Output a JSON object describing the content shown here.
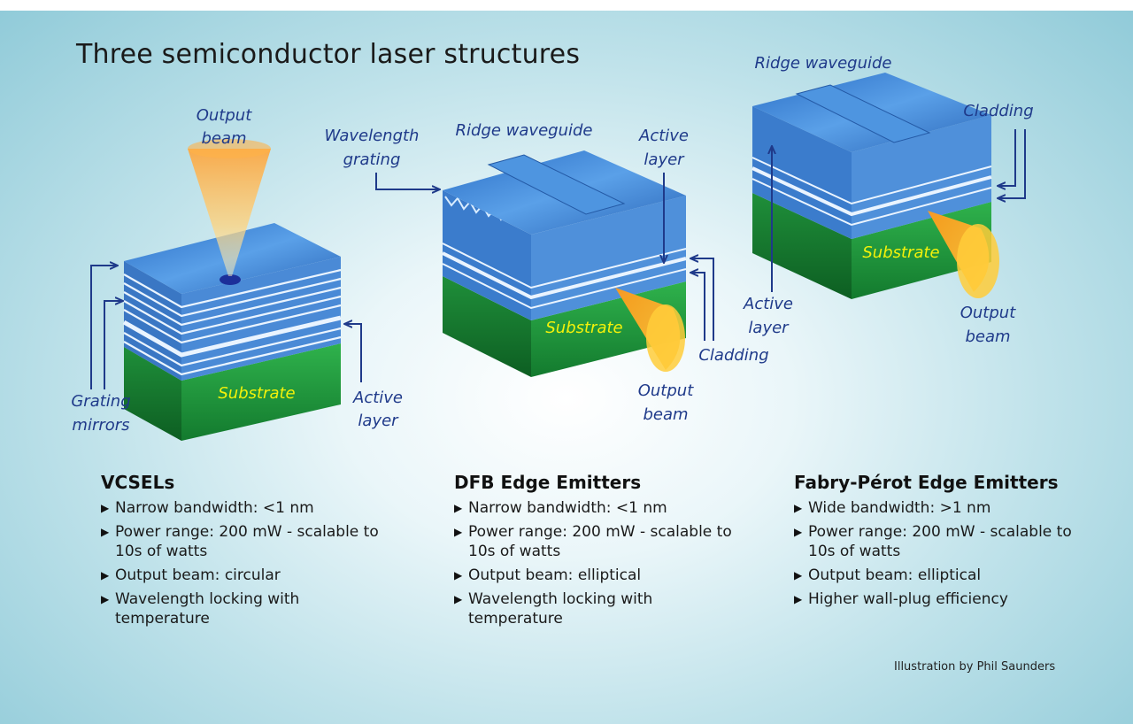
{
  "title": "Three semiconductor laser structures",
  "labels": {
    "vcsel": {
      "output_beam": [
        "Output",
        "beam"
      ],
      "grating_mirrors": [
        "Grating",
        "mirrors"
      ],
      "active_layer": [
        "Active",
        "layer"
      ],
      "substrate": "Substrate"
    },
    "dfb": {
      "wavelength_grating": [
        "Wavelength",
        "grating"
      ],
      "ridge_waveguide": "Ridge waveguide",
      "active_layer": [
        "Active",
        "layer"
      ],
      "substrate": "Substrate",
      "cladding": "Cladding",
      "output_beam": [
        "Output",
        "beam"
      ]
    },
    "fp": {
      "ridge_waveguide": "Ridge waveguide",
      "cladding": "Cladding",
      "substrate": "Substrate",
      "active_layer": [
        "Active",
        "layer"
      ],
      "output_beam": [
        "Output",
        "beam"
      ]
    }
  },
  "specs": [
    {
      "title": "VCSELs",
      "items": [
        "Narrow bandwidth: <1 nm",
        "Power range: 200 mW - scalable to 10s of watts",
        "Output beam: circular",
        "Wavelength locking with temperature"
      ]
    },
    {
      "title": "DFB Edge Emitters",
      "items": [
        "Narrow bandwidth: <1 nm",
        "Power range: 200 mW - scalable to 10s of watts",
        "Output beam: elliptical",
        "Wavelength locking with temperature"
      ]
    },
    {
      "title": "Fabry-Pérot Edge Emitters",
      "items": [
        "Wide bandwidth: >1 nm",
        "Power range: 200 mW - scalable to 10s of watts",
        "Output beam: elliptical",
        "Higher wall-plug efficiency"
      ]
    }
  ],
  "credit": "Illustration by Phil Saunders",
  "colors": {
    "label": "#1f3a8a",
    "substrate_text": "#f4f20a",
    "top_blue": "#3f86d6",
    "side_blue": "#2f6fc0",
    "substrate_green": "#1f9a3f",
    "beam": "#ffb020"
  }
}
